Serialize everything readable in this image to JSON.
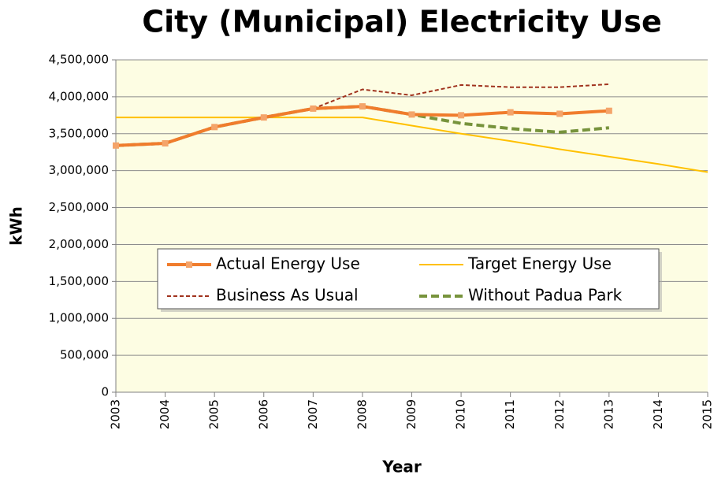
{
  "chart_data": {
    "type": "line",
    "title": "City (Municipal) Electricity Use",
    "xlabel": "Year",
    "ylabel": "kWh",
    "x": [
      2003,
      2004,
      2005,
      2006,
      2007,
      2008,
      2009,
      2010,
      2011,
      2012,
      2013,
      2014,
      2015
    ],
    "xlim": [
      2003,
      2015
    ],
    "xticks": [
      2003,
      2004,
      2005,
      2006,
      2007,
      2008,
      2009,
      2010,
      2011,
      2012,
      2013,
      2014,
      2015
    ],
    "ylim": [
      0,
      4500000
    ],
    "yticks": [
      0,
      {
        "value": 500000,
        "label": "500,000"
      },
      {
        "value": 1000000,
        "label": "1,000,000"
      },
      {
        "value": 1500000,
        "label": "1,500,000"
      },
      {
        "value": 2000000,
        "label": "2,000,000"
      },
      {
        "value": 2500000,
        "label": "2,500,000"
      },
      {
        "value": 3000000,
        "label": "3,000,000"
      },
      {
        "value": 3500000,
        "label": "3,500,000"
      },
      {
        "value": 4000000,
        "label": "4,000,000"
      },
      {
        "value": 4500000,
        "label": "4,500,000"
      }
    ],
    "grid": true,
    "legend": "center",
    "series": [
      {
        "name": "Actual Energy Use",
        "color": "#f07c2c",
        "style": "solid",
        "marker": "square",
        "values": [
          3340000,
          3370000,
          3590000,
          3720000,
          3840000,
          3870000,
          3760000,
          3750000,
          3790000,
          3770000,
          3810000,
          null,
          null
        ]
      },
      {
        "name": "Target Energy Use",
        "color": "#ffc000",
        "style": "solid",
        "values": [
          3720000,
          3720000,
          3720000,
          3720000,
          3720000,
          3720000,
          3610000,
          3500000,
          3400000,
          3290000,
          3190000,
          3090000,
          2980000
        ]
      },
      {
        "name": "Business As Usual",
        "color": "#a0331e",
        "style": "dashed",
        "values": [
          3340000,
          3370000,
          3590000,
          3720000,
          3840000,
          4100000,
          4020000,
          4160000,
          4130000,
          4130000,
          4170000,
          null,
          null
        ]
      },
      {
        "name": "Without Padua Park",
        "color": "#77933c",
        "style": "dashed",
        "values": [
          3340000,
          3370000,
          3590000,
          3720000,
          3840000,
          3870000,
          3760000,
          3640000,
          3570000,
          3520000,
          3580000,
          null,
          null
        ]
      }
    ]
  }
}
